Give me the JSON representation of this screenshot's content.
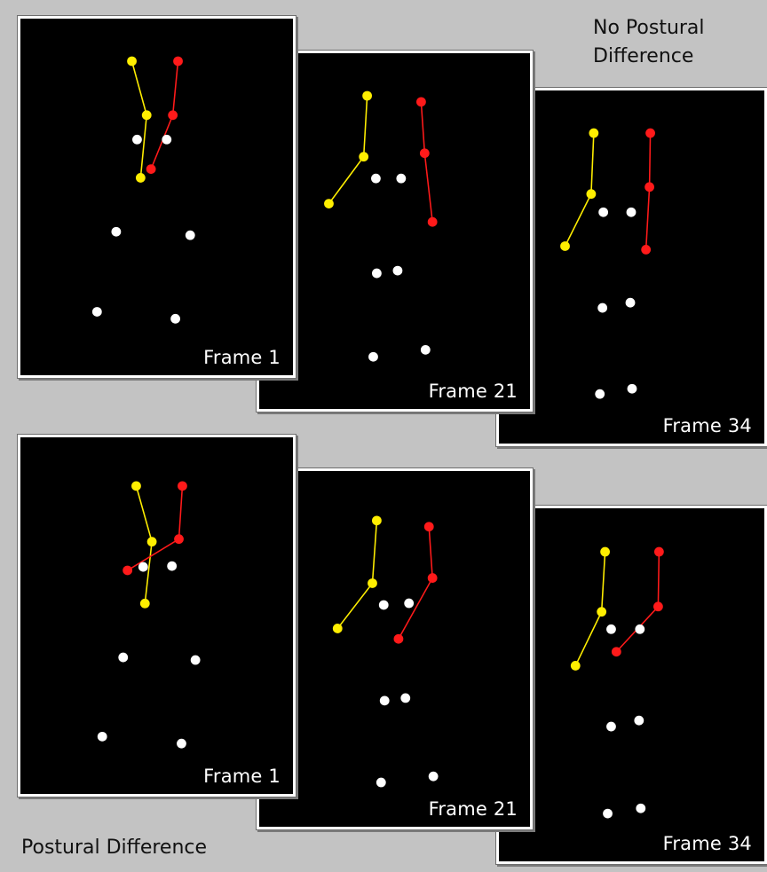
{
  "captions": {
    "top_line1": "No Postural",
    "top_line2": "Difference",
    "bottom": "Postural Difference"
  },
  "colors": {
    "background": "#c3c3c3",
    "frame_bg": "#000000",
    "left_arm": "#ffee00",
    "right_arm": "#ff1a1a",
    "body_point": "#ffffff",
    "label": "#ffffff"
  },
  "rows": [
    {
      "name": "no-postural-difference",
      "frames": [
        {
          "label": "Frame 1"
        },
        {
          "label": "Frame 21"
        },
        {
          "label": "Frame 34"
        }
      ]
    },
    {
      "name": "postural-difference",
      "frames": [
        {
          "label": "Frame 1"
        },
        {
          "label": "Frame 21"
        },
        {
          "label": "Frame 34"
        }
      ]
    }
  ]
}
